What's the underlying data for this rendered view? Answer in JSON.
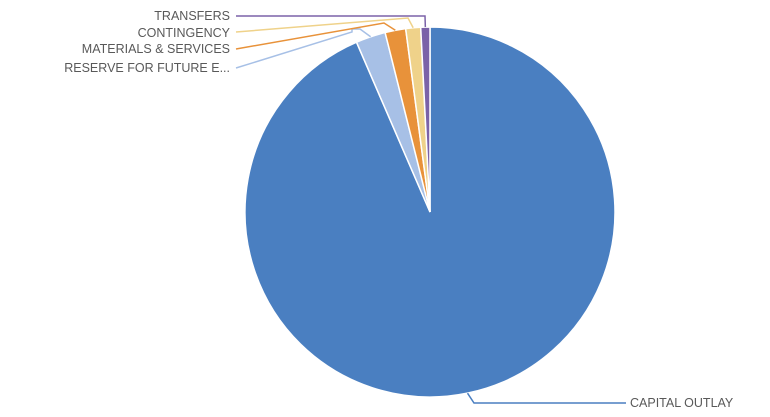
{
  "chart_data": {
    "type": "pie",
    "title": "",
    "slices": [
      {
        "label": "CAPITAL OUTLAY",
        "value": 93.5,
        "color": "#4a7fc1"
      },
      {
        "label": "RESERVE FOR FUTURE E...",
        "value": 2.6,
        "color": "#a7c0e6"
      },
      {
        "label": "MATERIALS & SERVICES",
        "value": 1.8,
        "color": "#e8923a"
      },
      {
        "label": "CONTINGENCY",
        "value": 1.3,
        "color": "#efd28a"
      },
      {
        "label": "TRANSFERS",
        "value": 0.8,
        "color": "#7b62a8"
      }
    ],
    "start_angle_deg": 0,
    "direction": "clockwise",
    "legend": "none"
  }
}
